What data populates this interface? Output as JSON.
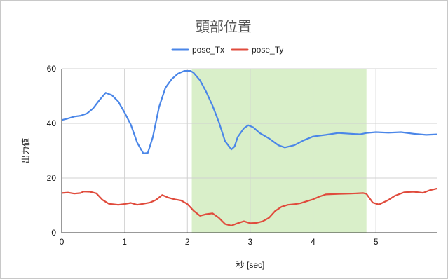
{
  "chart_data": {
    "type": "line",
    "title": "頭部位置",
    "xlabel": "秒 [sec]",
    "ylabel": "出力値",
    "xlim": [
      0,
      5.98
    ],
    "ylim": [
      0,
      60
    ],
    "x_ticks": [
      0,
      1,
      2,
      3,
      4,
      5
    ],
    "y_ticks": [
      0,
      20,
      40,
      60
    ],
    "grid": true,
    "legend_position": "top",
    "highlight_band": {
      "x": [
        2.07,
        4.85
      ],
      "color": "#d9efc9"
    },
    "series": [
      {
        "name": "pose_Tx",
        "color": "#4a86e8",
        "points": [
          [
            0,
            41.2
          ],
          [
            0.1,
            41.8
          ],
          [
            0.2,
            42.5
          ],
          [
            0.3,
            42.8
          ],
          [
            0.4,
            43.6
          ],
          [
            0.5,
            45.5
          ],
          [
            0.6,
            48.5
          ],
          [
            0.7,
            51.2
          ],
          [
            0.8,
            50.3
          ],
          [
            0.9,
            48
          ],
          [
            1.0,
            44
          ],
          [
            1.1,
            39.5
          ],
          [
            1.2,
            33
          ],
          [
            1.3,
            29
          ],
          [
            1.37,
            29.2
          ],
          [
            1.45,
            35
          ],
          [
            1.55,
            46
          ],
          [
            1.65,
            53
          ],
          [
            1.75,
            56.2
          ],
          [
            1.85,
            58.2
          ],
          [
            1.95,
            59.2
          ],
          [
            2.05,
            59.2
          ],
          [
            2.1,
            58.5
          ],
          [
            2.2,
            55.8
          ],
          [
            2.3,
            51.5
          ],
          [
            2.4,
            46.5
          ],
          [
            2.5,
            40.5
          ],
          [
            2.6,
            33.5
          ],
          [
            2.7,
            30.5
          ],
          [
            2.75,
            31.5
          ],
          [
            2.8,
            35
          ],
          [
            2.9,
            38.2
          ],
          [
            2.97,
            39.3
          ],
          [
            3.05,
            38.5
          ],
          [
            3.15,
            36.5
          ],
          [
            3.3,
            34.5
          ],
          [
            3.45,
            32
          ],
          [
            3.55,
            31.2
          ],
          [
            3.7,
            32
          ],
          [
            3.85,
            33.8
          ],
          [
            4.0,
            35.2
          ],
          [
            4.2,
            35.8
          ],
          [
            4.4,
            36.5
          ],
          [
            4.6,
            36.2
          ],
          [
            4.75,
            36
          ],
          [
            4.85,
            36.5
          ],
          [
            5.0,
            36.8
          ],
          [
            5.2,
            36.6
          ],
          [
            5.4,
            36.8
          ],
          [
            5.6,
            36.2
          ],
          [
            5.8,
            35.8
          ],
          [
            5.98,
            36
          ]
        ]
      },
      {
        "name": "pose_Ty",
        "color": "#e04b3c",
        "points": [
          [
            0,
            14.5
          ],
          [
            0.1,
            14.7
          ],
          [
            0.2,
            14.3
          ],
          [
            0.3,
            14.5
          ],
          [
            0.35,
            15.1
          ],
          [
            0.45,
            15
          ],
          [
            0.55,
            14.4
          ],
          [
            0.65,
            12
          ],
          [
            0.75,
            10.6
          ],
          [
            0.9,
            10.2
          ],
          [
            1.0,
            10.5
          ],
          [
            1.1,
            10.9
          ],
          [
            1.2,
            10.2
          ],
          [
            1.3,
            10.6
          ],
          [
            1.4,
            11
          ],
          [
            1.5,
            12
          ],
          [
            1.6,
            13.8
          ],
          [
            1.7,
            12.8
          ],
          [
            1.8,
            12.2
          ],
          [
            1.9,
            11.8
          ],
          [
            2.0,
            10.5
          ],
          [
            2.1,
            8
          ],
          [
            2.2,
            6.2
          ],
          [
            2.3,
            6.8
          ],
          [
            2.4,
            7.1
          ],
          [
            2.5,
            5.5
          ],
          [
            2.6,
            3.2
          ],
          [
            2.7,
            2.6
          ],
          [
            2.8,
            3.5
          ],
          [
            2.9,
            4.2
          ],
          [
            3.0,
            3.5
          ],
          [
            3.1,
            3.6
          ],
          [
            3.2,
            4.2
          ],
          [
            3.3,
            5.5
          ],
          [
            3.4,
            8
          ],
          [
            3.5,
            9.5
          ],
          [
            3.6,
            10.2
          ],
          [
            3.7,
            10.4
          ],
          [
            3.8,
            10.8
          ],
          [
            3.9,
            11.5
          ],
          [
            4.0,
            12.2
          ],
          [
            4.1,
            13.2
          ],
          [
            4.2,
            14
          ],
          [
            4.4,
            14.2
          ],
          [
            4.6,
            14.3
          ],
          [
            4.8,
            14.5
          ],
          [
            4.85,
            14.2
          ],
          [
            4.95,
            11
          ],
          [
            5.05,
            10.3
          ],
          [
            5.2,
            12
          ],
          [
            5.3,
            13.5
          ],
          [
            5.45,
            14.8
          ],
          [
            5.6,
            15
          ],
          [
            5.75,
            14.6
          ],
          [
            5.85,
            15.5
          ],
          [
            5.98,
            16.2
          ]
        ]
      }
    ]
  }
}
